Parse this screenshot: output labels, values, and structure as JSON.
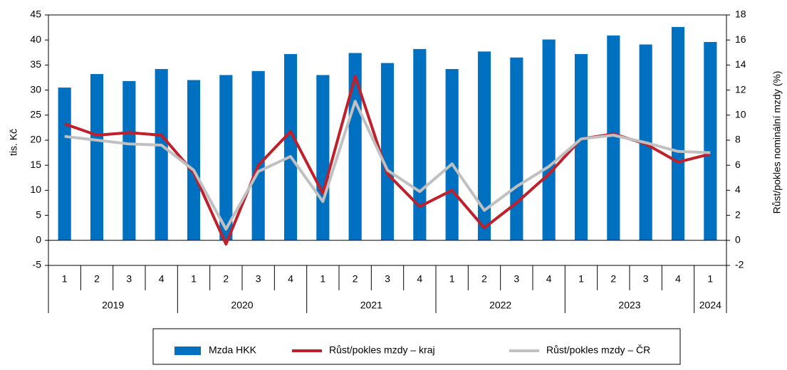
{
  "chart_data": {
    "type": "bar_line",
    "ylabel": "tis. Kč",
    "y2label": "Růst/pokles nominální mzdy (%)",
    "groups": [
      {
        "label": "2019",
        "categories": [
          "1",
          "2",
          "3",
          "4"
        ]
      },
      {
        "label": "2020",
        "categories": [
          "1",
          "2",
          "3",
          "4"
        ]
      },
      {
        "label": "2021",
        "categories": [
          "1",
          "2",
          "3",
          "4"
        ]
      },
      {
        "label": "2022",
        "categories": [
          "1",
          "2",
          "3",
          "4"
        ]
      },
      {
        "label": "2023",
        "categories": [
          "1",
          "2",
          "3",
          "4"
        ]
      },
      {
        "label": "2024",
        "categories": [
          "1"
        ]
      }
    ],
    "series": [
      {
        "name": "Mzda HKK",
        "type": "bar",
        "axis": "y",
        "color": "#0070c0",
        "values": [
          30.5,
          33.2,
          31.8,
          34.2,
          32.0,
          33.0,
          33.8,
          37.2,
          33.0,
          37.4,
          35.4,
          38.2,
          34.2,
          37.7,
          36.5,
          40.1,
          37.2,
          40.9,
          39.1,
          42.6,
          39.6
        ]
      },
      {
        "name": "Růst/pokles mzdy – kraj",
        "type": "line",
        "axis": "y2",
        "color": "#c0202a",
        "values": [
          9.3,
          8.4,
          8.6,
          8.4,
          5.4,
          -0.3,
          6.0,
          8.7,
          3.75,
          13.1,
          5.3,
          2.7,
          4.0,
          1.0,
          3.0,
          5.3,
          8.1,
          8.5,
          7.7,
          6.25,
          6.9
        ]
      },
      {
        "name": "Růst/pokles mzdy – ČR",
        "type": "line",
        "axis": "y2",
        "color": "#c0c0c0",
        "values": [
          8.3,
          8.0,
          7.7,
          7.6,
          5.6,
          0.9,
          5.5,
          6.7,
          3.1,
          11.1,
          5.6,
          3.9,
          6.1,
          2.4,
          4.3,
          5.9,
          8.1,
          8.4,
          7.8,
          7.1,
          7.0
        ]
      }
    ],
    "ylim": [
      -5,
      45
    ],
    "yticks": [
      -5,
      0,
      5,
      10,
      15,
      20,
      25,
      30,
      35,
      40,
      45
    ],
    "y2lim": [
      -2,
      18
    ],
    "y2ticks": [
      -2,
      0,
      2,
      4,
      6,
      8,
      10,
      12,
      14,
      16,
      18
    ],
    "legend": "bottom"
  }
}
